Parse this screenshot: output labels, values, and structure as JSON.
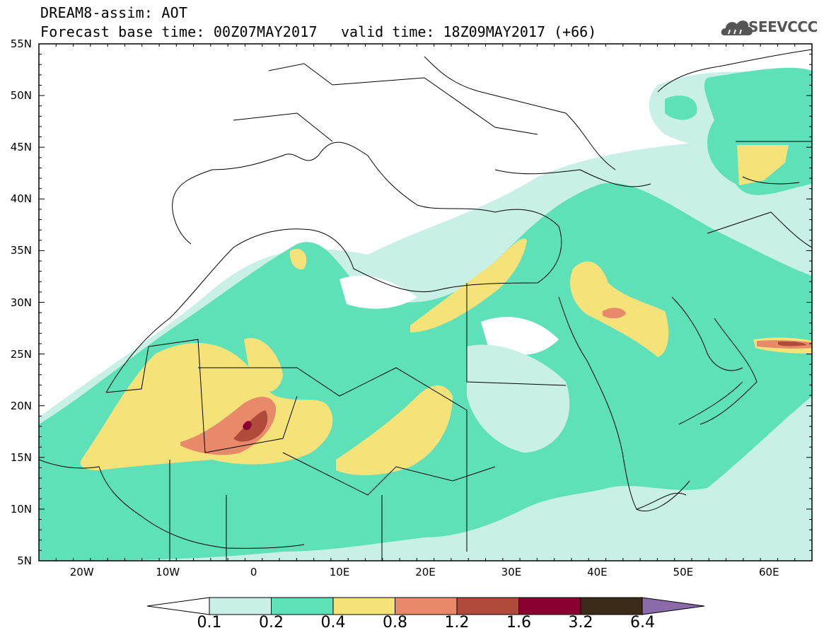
{
  "header": {
    "title": "DREAM8-assim: AOT",
    "base_time": "Forecast base time: 00Z07MAY2017",
    "valid_time": "valid time: 18Z09MAY2017 (+66)"
  },
  "logo": {
    "text": "SEEVCCC",
    "icon": "cloud-icon"
  },
  "map": {
    "lat_ticks": [
      "55N",
      "50N",
      "45N",
      "40N",
      "35N",
      "30N",
      "25N",
      "20N",
      "15N",
      "10N",
      "5N"
    ],
    "lon_ticks": [
      "20W",
      "10W",
      "0",
      "10E",
      "20E",
      "30E",
      "40E",
      "50E",
      "60E"
    ],
    "lat_range": [
      5,
      55
    ],
    "lon_range": [
      -25,
      65
    ]
  },
  "colorbar": {
    "labels": [
      "0.1",
      "0.2",
      "0.4",
      "0.8",
      "1.2",
      "1.6",
      "3.2",
      "6.4"
    ],
    "colors": [
      "#ffffff",
      "#c8f0e6",
      "#5ee0b8",
      "#f5e37a",
      "#e88a6a",
      "#b04a3a",
      "#8a0030",
      "#3a2a18",
      "#8a6aa8"
    ]
  }
}
